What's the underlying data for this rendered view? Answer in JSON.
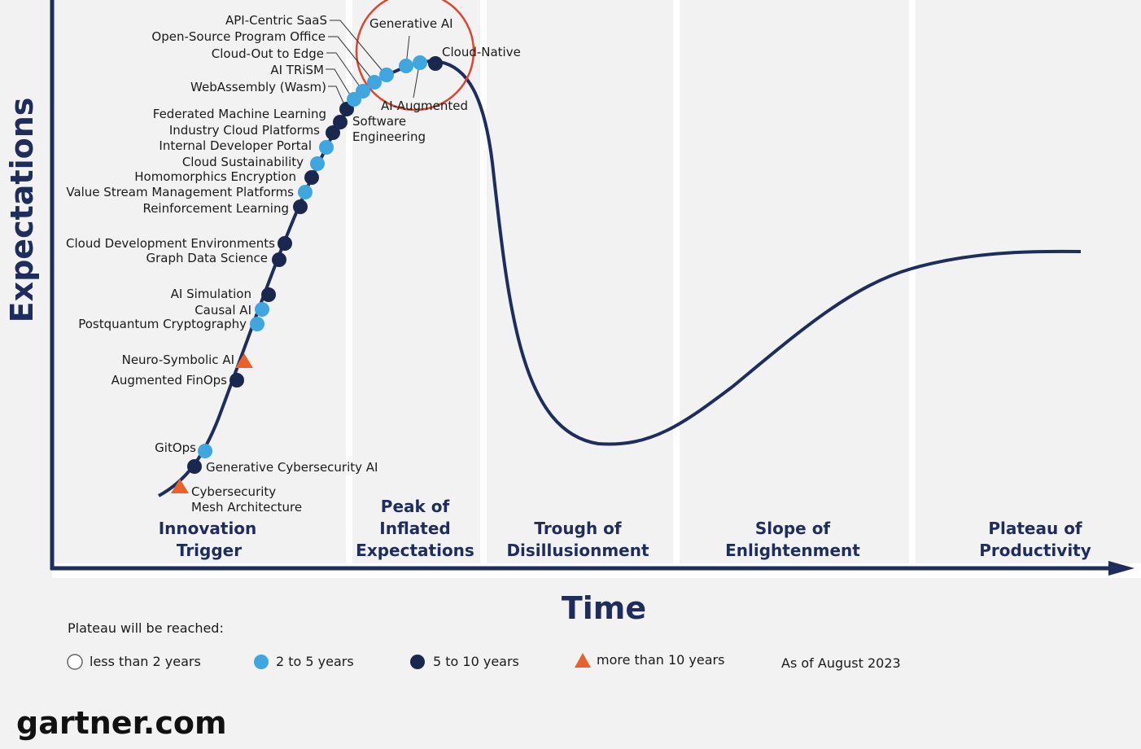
{
  "axes": {
    "y_label": "Expectations",
    "x_label": "Time"
  },
  "phases": [
    {
      "name": "Innovation Trigger",
      "lines": [
        "Innovation",
        "Trigger"
      ]
    },
    {
      "name": "Peak of Inflated Expectations",
      "lines": [
        "Peak of",
        "Inflated",
        "Expectations"
      ]
    },
    {
      "name": "Trough of Disillusionment",
      "lines": [
        "Trough of",
        "Disillusionment"
      ]
    },
    {
      "name": "Slope of Enlightenment",
      "lines": [
        "Slope of",
        "Enlightenment"
      ]
    },
    {
      "name": "Plateau of Productivity",
      "lines": [
        "Plateau of",
        "Productivity"
      ]
    }
  ],
  "technologies": [
    {
      "name": "Cybersecurity Mesh Architecture",
      "lines": [
        "Cybersecurity",
        "Mesh Architecture"
      ],
      "plateau": "more than 10 years"
    },
    {
      "name": "Generative Cybersecurity AI",
      "lines": [
        "Generative Cybersecurity AI"
      ],
      "plateau": "5 to 10 years"
    },
    {
      "name": "GitOps",
      "lines": [
        "GitOps"
      ],
      "plateau": "2 to 5 years"
    },
    {
      "name": "Augmented FinOps",
      "lines": [
        "Augmented FinOps"
      ],
      "plateau": "5 to 10 years"
    },
    {
      "name": "Neuro-Symbolic AI",
      "lines": [
        "Neuro-Symbolic AI"
      ],
      "plateau": "more than 10 years"
    },
    {
      "name": "Postquantum Cryptography",
      "lines": [
        "Postquantum Cryptography"
      ],
      "plateau": "2 to 5 years"
    },
    {
      "name": "Causal AI",
      "lines": [
        "Causal AI"
      ],
      "plateau": "2 to 5 years"
    },
    {
      "name": "AI Simulation",
      "lines": [
        "AI Simulation"
      ],
      "plateau": "5 to 10 years"
    },
    {
      "name": "Graph Data Science",
      "lines": [
        "Graph Data Science"
      ],
      "plateau": "5 to 10 years"
    },
    {
      "name": "Cloud Development Environments",
      "lines": [
        "Cloud Development Environments"
      ],
      "plateau": "5 to 10 years"
    },
    {
      "name": "Reinforcement Learning",
      "lines": [
        "Reinforcement Learning"
      ],
      "plateau": "5 to 10 years"
    },
    {
      "name": "Value Stream Management Platforms",
      "lines": [
        "Value Stream Management Platforms"
      ],
      "plateau": "2 to 5 years"
    },
    {
      "name": "Homomorphic Encryption",
      "lines": [
        "Homomorphics Encryption"
      ],
      "plateau": "5 to 10 years"
    },
    {
      "name": "Cloud Sustainability",
      "lines": [
        "Cloud Sustainability"
      ],
      "plateau": "2 to 5 years"
    },
    {
      "name": "Internal Developer Portal",
      "lines": [
        "Internal Developer Portal"
      ],
      "plateau": "2 to 5 years"
    },
    {
      "name": "Industry Cloud Platforms",
      "lines": [
        "Industry Cloud Platforms"
      ],
      "plateau": "5 to 10 years"
    },
    {
      "name": "Federated Machine Learning",
      "lines": [
        "Federated Machine Learning"
      ],
      "plateau": "5 to 10 years"
    },
    {
      "name": "WebAssembly (Wasm)",
      "lines": [
        "WebAssembly (Wasm)"
      ],
      "plateau": "2 to 5 years"
    },
    {
      "name": "AI TRiSM",
      "lines": [
        "AI TRiSM"
      ],
      "plateau": "2 to 5 years"
    },
    {
      "name": "Cloud-Out to Edge",
      "lines": [
        "Cloud-Out to Edge"
      ],
      "plateau": "2 to 5 years"
    },
    {
      "name": "Open-Source Program Office",
      "lines": [
        "Open-Source Program Office"
      ],
      "plateau": "2 to 5 years"
    },
    {
      "name": "API-Centric SaaS",
      "lines": [
        "API-Centric SaaS"
      ],
      "plateau": "2 to 5 years"
    },
    {
      "name": "Software Engineering",
      "lines": [
        "Software",
        "Engineering"
      ],
      "plateau": "5 to 10 years"
    },
    {
      "name": "Generative AI",
      "lines": [
        "Generative AI"
      ],
      "plateau": "2 to 5 years"
    },
    {
      "name": "AI-Augmented",
      "lines": [
        "AI-Augmented"
      ],
      "plateau": "2 to 5 years"
    },
    {
      "name": "Cloud-Native",
      "lines": [
        "Cloud-Native"
      ],
      "plateau": "5 to 10 years"
    }
  ],
  "legend": {
    "title": "Plateau will be reached:",
    "items": [
      {
        "label": "less than 2 years",
        "marker": "hollow-circle"
      },
      {
        "label": "2 to 5 years",
        "marker": "light-blue-circle"
      },
      {
        "label": "5 to 10 years",
        "marker": "dark-navy-circle"
      },
      {
        "label": "more than 10 years",
        "marker": "orange-triangle"
      }
    ],
    "as_of": "As of August 2023"
  },
  "brand": "gartner.com",
  "colors": {
    "curve": "#1e2d5c",
    "axis": "#1e2d5c",
    "light_blue": "#3fa6e0",
    "dark_navy": "#1a2850",
    "orange": "#e8622c",
    "highlight_circle": "#e0452e",
    "band": "#ffffff",
    "background": "#f2f2f2"
  }
}
